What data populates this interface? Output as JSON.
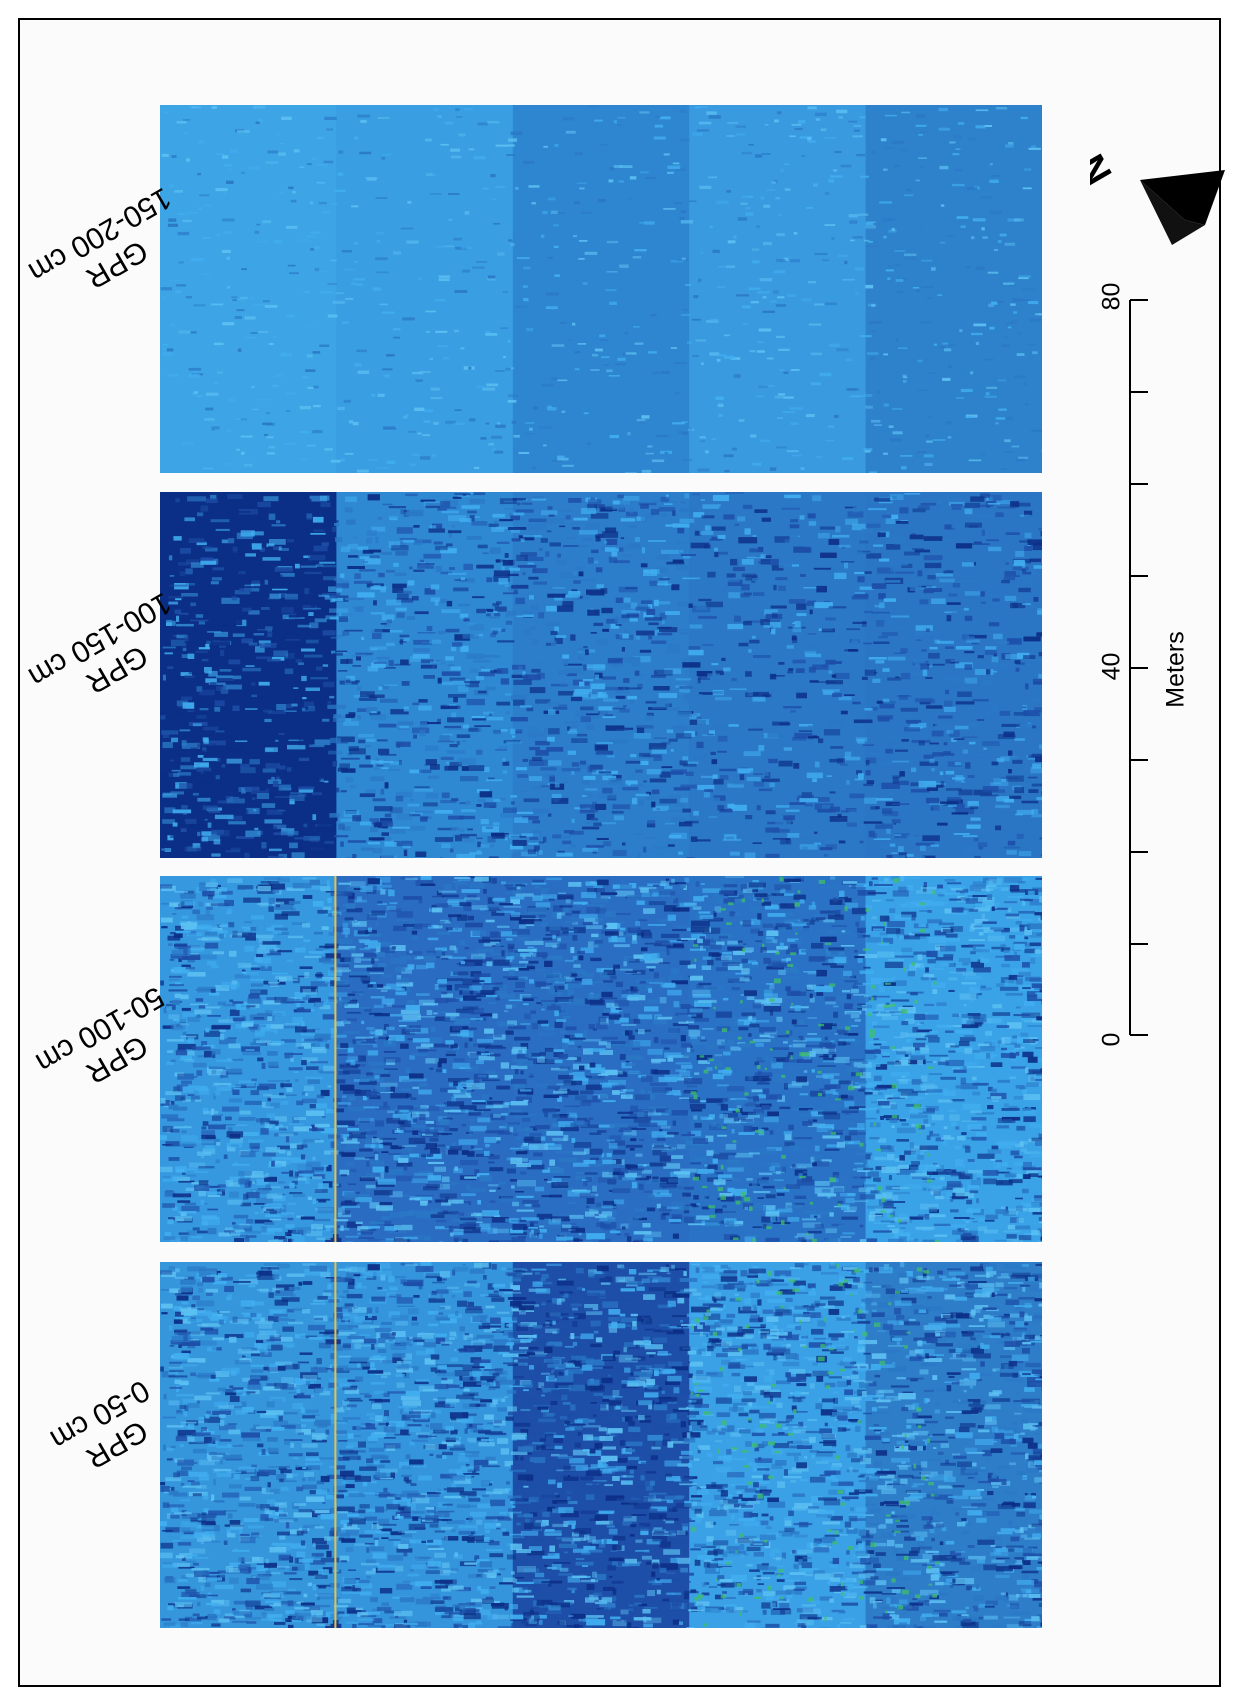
{
  "panels": [
    {
      "title": "GPR",
      "depth": "150-200 cm",
      "strips": [
        "#3da4e6",
        "#3a9ee2",
        "#2f86d0",
        "#3a9ae0",
        "#2e82cc"
      ],
      "variant": "smooth"
    },
    {
      "title": "GPR",
      "depth": "100-150 cm",
      "strips": [
        "#0b2f86",
        "#2f88d2",
        "#2c7dca",
        "#2b78c6",
        "#2a76c5"
      ],
      "variant": "mixed"
    },
    {
      "title": "GPR",
      "depth": "50-100 cm",
      "strips": [
        "#3698df",
        "#2a6cc2",
        "#2a6ec3",
        "#2a72c5",
        "#3aa3e8"
      ],
      "variant": "noisy"
    },
    {
      "title": "GPR",
      "depth": "0-50 cm",
      "strips": [
        "#3596dc",
        "#3595dc",
        "#1d4ea8",
        "#3ba1e6",
        "#2e7dc9"
      ],
      "variant": "noisy"
    }
  ],
  "scale": {
    "ticks": [
      "0",
      "40",
      "80"
    ],
    "unit": "Meters"
  },
  "north": {
    "label": "N"
  },
  "colors": {
    "light": "#41aef0",
    "mid": "#2a78c6",
    "dark": "#0c2e86",
    "accent_green": "#3fbf6a",
    "seam_yellow": "#e8c04a"
  }
}
